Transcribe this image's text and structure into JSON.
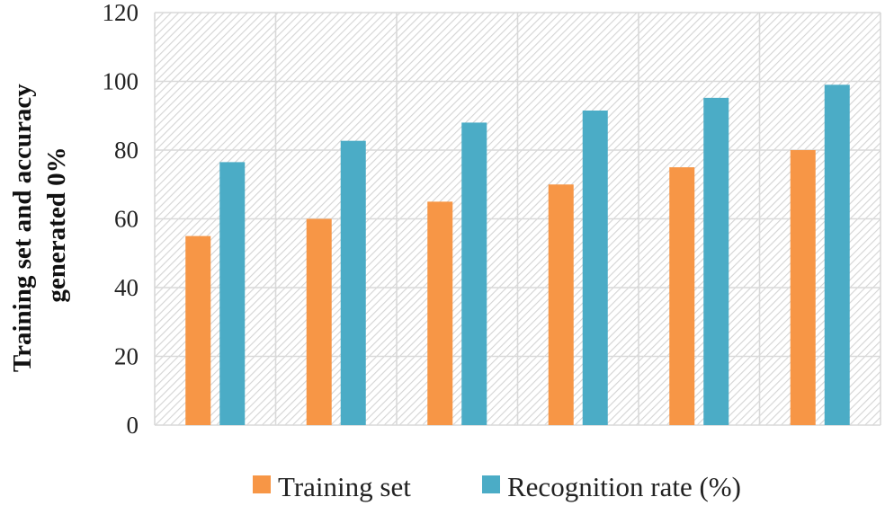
{
  "chart_data": {
    "type": "bar",
    "categories": [
      "",
      "",
      "",
      "",
      "",
      ""
    ],
    "series": [
      {
        "name": "Training set",
        "values": [
          55,
          60,
          65,
          70,
          75,
          80
        ],
        "color": "#F79646"
      },
      {
        "name": "Recognition rate (%)",
        "values": [
          76.5,
          82.7,
          88,
          91.5,
          95.2,
          99
        ],
        "color": "#4BACC6"
      }
    ],
    "ylabel_lines": [
      "Training set and accuracy",
      "generated 0%"
    ],
    "xlabel": "",
    "title": "",
    "ylim": [
      0,
      120
    ],
    "yticks": [
      0,
      20,
      40,
      60,
      80,
      100,
      120
    ],
    "grid": true,
    "background_pattern": "diagonal-hatch",
    "legend_position": "bottom"
  }
}
